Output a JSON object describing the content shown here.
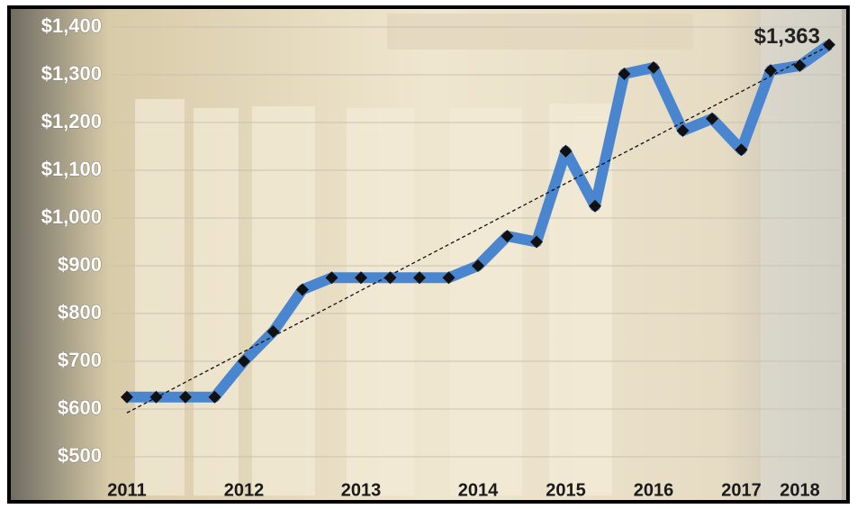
{
  "chart_data": {
    "type": "line",
    "categories": [
      "2011",
      null,
      null,
      null,
      "2012",
      null,
      null,
      null,
      "2013",
      null,
      null,
      null,
      "2014",
      null,
      null,
      "2015",
      null,
      null,
      "2016",
      null,
      null,
      "2017",
      null,
      "2018",
      null
    ],
    "series": [
      {
        "color": "#4a86d0",
        "values": [
          625,
          625,
          625,
          625,
          700,
          762,
          850,
          875,
          875,
          875,
          875,
          875,
          900,
          962,
          950,
          1140,
          1025,
          1302,
          1315,
          1183,
          1208,
          1143,
          1309,
          1319,
          1363
        ],
        "value_labels": [
          null,
          null,
          null,
          null,
          null,
          null,
          null,
          null,
          null,
          null,
          null,
          null,
          null,
          null,
          null,
          null,
          null,
          null,
          null,
          null,
          null,
          null,
          null,
          null,
          "$1,363"
        ]
      }
    ],
    "trendline": [
      592,
      1361
    ],
    "ylim": [
      500,
      1400
    ],
    "yticks": [
      {
        "value": 500,
        "label": "$500"
      },
      {
        "value": 600,
        "label": "$600"
      },
      {
        "value": 700,
        "label": "$700"
      },
      {
        "value": 800,
        "label": "$800"
      },
      {
        "value": 900,
        "label": "$900"
      },
      {
        "value": 1000,
        "label": "$1,000"
      },
      {
        "value": 1100,
        "label": "$1,100"
      },
      {
        "value": 1200,
        "label": "$1,200"
      },
      {
        "value": 1300,
        "label": "$1,300"
      },
      {
        "value": 1400,
        "label": "$1,400"
      }
    ],
    "grid": true
  }
}
